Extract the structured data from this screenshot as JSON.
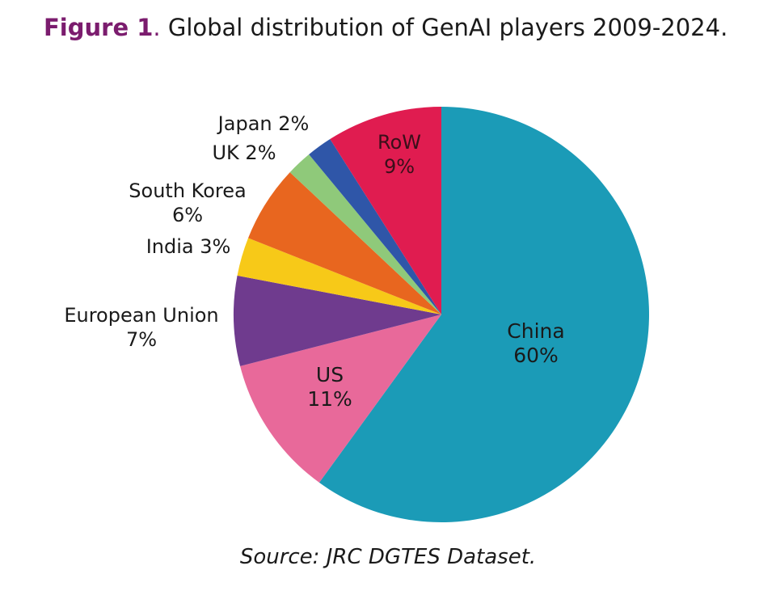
{
  "figure": {
    "label": "Figure 1",
    "title": "Global distribution of GenAI players 2009-2024."
  },
  "chart_data": {
    "type": "pie",
    "categories": [
      "China",
      "US",
      "European Union",
      "India",
      "South Korea",
      "UK",
      "Japan",
      "RoW"
    ],
    "values": [
      60,
      11,
      7,
      3,
      6,
      2,
      2,
      9
    ],
    "labels": [
      "60%",
      "11%",
      "7%",
      "3%",
      "6%",
      "2%",
      "2%",
      "9%"
    ],
    "colors": [
      "#1b9bb7",
      "#e8699a",
      "#6f3b8e",
      "#f7c918",
      "#e8661f",
      "#8fc97a",
      "#2f56a8",
      "#e01c50"
    ],
    "start": "12 o'clock",
    "direction": "clockwise"
  },
  "source": "Source: JRC DGTES Dataset."
}
